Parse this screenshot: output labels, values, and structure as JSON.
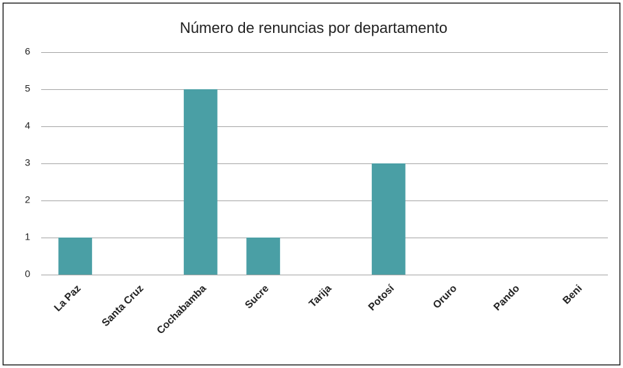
{
  "chart_data": {
    "type": "bar",
    "title": "Número de renuncias por departamento",
    "categories": [
      "La Paz",
      "Santa Cruz",
      "Cochabamba",
      "Sucre",
      "Tarija",
      "Potosí",
      "Oruro",
      "Pando",
      "Beni"
    ],
    "values": [
      1,
      0,
      5,
      1,
      0,
      3,
      0,
      0,
      0
    ],
    "color": "#4a9fa5",
    "ylim": [
      0,
      6
    ],
    "yticks": [
      0,
      1,
      2,
      3,
      4,
      5,
      6
    ],
    "grid": true
  }
}
